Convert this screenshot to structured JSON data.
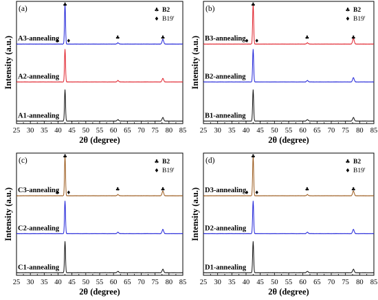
{
  "chart_data": [
    {
      "type": "line",
      "panel_label": "(a)",
      "xlabel": "2θ (degree)",
      "ylabel": "Intensity (a.u.)",
      "xlim": [
        25,
        85
      ],
      "x_ticks": [
        "25",
        "30",
        "35",
        "40",
        "45",
        "50",
        "55",
        "60",
        "65",
        "70",
        "75",
        "80",
        "85"
      ],
      "legend": [
        {
          "symbol": "♣",
          "label": "B2"
        },
        {
          "symbol": "♦",
          "label": "B19'"
        }
      ],
      "phase_markers": [
        {
          "symbol": "♦",
          "x": 40.0
        },
        {
          "symbol": "♣",
          "x": 42.5
        },
        {
          "symbol": "♦",
          "x": 43.8
        },
        {
          "symbol": "♣",
          "x": 61.5
        },
        {
          "symbol": "♣",
          "x": 77.8
        }
      ],
      "series": [
        {
          "name": "A3-annealing",
          "color": "#1f22d8",
          "peaks": [
            {
              "x": 42.5,
              "h": 1.0
            },
            {
              "x": 61.6,
              "h": 0.03
            },
            {
              "x": 77.8,
              "h": 0.12
            }
          ]
        },
        {
          "name": "A2-annealing",
          "color": "#e0202a",
          "peaks": [
            {
              "x": 42.5,
              "h": 0.92
            },
            {
              "x": 61.6,
              "h": 0.04
            },
            {
              "x": 77.8,
              "h": 0.1
            }
          ]
        },
        {
          "name": "A1-annealing",
          "color": "#111111",
          "peaks": [
            {
              "x": 42.5,
              "h": 0.88
            },
            {
              "x": 61.6,
              "h": 0.04
            },
            {
              "x": 77.8,
              "h": 0.1
            }
          ]
        }
      ]
    },
    {
      "type": "line",
      "panel_label": "(b)",
      "xlabel": "2θ (degree)",
      "ylabel": "Intensity (a.u.)",
      "xlim": [
        25,
        85
      ],
      "x_ticks": [
        "25",
        "30",
        "35",
        "40",
        "45",
        "50",
        "55",
        "60",
        "65",
        "70",
        "75",
        "80",
        "85"
      ],
      "legend": [
        {
          "symbol": "♣",
          "label": "B2"
        },
        {
          "symbol": "♦",
          "label": "B19'"
        }
      ],
      "phase_markers": [
        {
          "symbol": "♦",
          "x": 40.5
        },
        {
          "symbol": "♣",
          "x": 42.5
        },
        {
          "symbol": "♦",
          "x": 43.8
        },
        {
          "symbol": "♣",
          "x": 61.5
        },
        {
          "symbol": "♣",
          "x": 77.8
        }
      ],
      "series": [
        {
          "name": "B3-annealing",
          "color": "#e0202a",
          "peaks": [
            {
              "x": 42.5,
              "h": 1.0
            },
            {
              "x": 61.6,
              "h": 0.03
            },
            {
              "x": 77.8,
              "h": 0.14
            }
          ]
        },
        {
          "name": "B2-annealing",
          "color": "#1f22d8",
          "peaks": [
            {
              "x": 42.5,
              "h": 0.92
            },
            {
              "x": 61.6,
              "h": 0.04
            },
            {
              "x": 77.8,
              "h": 0.12
            }
          ]
        },
        {
          "name": "B1-annealing",
          "color": "#111111",
          "peaks": [
            {
              "x": 42.5,
              "h": 0.88
            },
            {
              "x": 61.6,
              "h": 0.04
            },
            {
              "x": 77.8,
              "h": 0.1
            }
          ]
        }
      ]
    },
    {
      "type": "line",
      "panel_label": "(c)",
      "xlabel": "2θ (degree)",
      "ylabel": "Intensity (a.u.)",
      "xlim": [
        25,
        85
      ],
      "x_ticks": [
        "25",
        "30",
        "35",
        "40",
        "45",
        "50",
        "55",
        "60",
        "65",
        "70",
        "75",
        "80",
        "85"
      ],
      "legend": [
        {
          "symbol": "♣",
          "label": "B2"
        },
        {
          "symbol": "♦",
          "label": "B19'"
        }
      ],
      "phase_markers": [
        {
          "symbol": "♦",
          "x": 40.0
        },
        {
          "symbol": "♣",
          "x": 42.5
        },
        {
          "symbol": "♦",
          "x": 43.8
        },
        {
          "symbol": "♣",
          "x": 61.5
        },
        {
          "symbol": "♣",
          "x": 77.8
        }
      ],
      "series": [
        {
          "name": "C3-annealing",
          "color": "#9b5a1c",
          "peaks": [
            {
              "x": 42.5,
              "h": 1.0
            },
            {
              "x": 61.6,
              "h": 0.03
            },
            {
              "x": 77.8,
              "h": 0.12
            }
          ]
        },
        {
          "name": "C2-annealing",
          "color": "#1f22d8",
          "peaks": [
            {
              "x": 42.5,
              "h": 0.92
            },
            {
              "x": 61.6,
              "h": 0.04
            },
            {
              "x": 77.8,
              "h": 0.12
            }
          ]
        },
        {
          "name": "C1-annealing",
          "color": "#111111",
          "peaks": [
            {
              "x": 42.5,
              "h": 0.88
            },
            {
              "x": 61.6,
              "h": 0.04
            },
            {
              "x": 77.8,
              "h": 0.1
            }
          ]
        }
      ]
    },
    {
      "type": "line",
      "panel_label": "(d)",
      "xlabel": "2θ (degree)",
      "ylabel": "Intensity (a.u.)",
      "xlim": [
        25,
        85
      ],
      "x_ticks": [
        "25",
        "30",
        "35",
        "40",
        "45",
        "50",
        "55",
        "60",
        "65",
        "70",
        "75",
        "80",
        "85"
      ],
      "legend": [
        {
          "symbol": "♣",
          "label": "B2"
        },
        {
          "symbol": "♦",
          "label": "B19'"
        }
      ],
      "phase_markers": [
        {
          "symbol": "♦",
          "x": 40.5
        },
        {
          "symbol": "♣",
          "x": 42.5
        },
        {
          "symbol": "♦",
          "x": 43.8
        },
        {
          "symbol": "♣",
          "x": 61.5
        },
        {
          "symbol": "♣",
          "x": 77.8
        }
      ],
      "series": [
        {
          "name": "D3-annealing",
          "color": "#9b5a1c",
          "peaks": [
            {
              "x": 42.5,
              "h": 1.0
            },
            {
              "x": 61.6,
              "h": 0.03
            },
            {
              "x": 77.8,
              "h": 0.12
            }
          ]
        },
        {
          "name": "D2-annealing",
          "color": "#1f22d8",
          "peaks": [
            {
              "x": 42.5,
              "h": 0.92
            },
            {
              "x": 61.6,
              "h": 0.04
            },
            {
              "x": 77.8,
              "h": 0.12
            }
          ]
        },
        {
          "name": "D1-annealing",
          "color": "#111111",
          "peaks": [
            {
              "x": 42.5,
              "h": 0.88
            },
            {
              "x": 61.6,
              "h": 0.04
            },
            {
              "x": 77.8,
              "h": 0.1
            }
          ]
        }
      ]
    }
  ]
}
